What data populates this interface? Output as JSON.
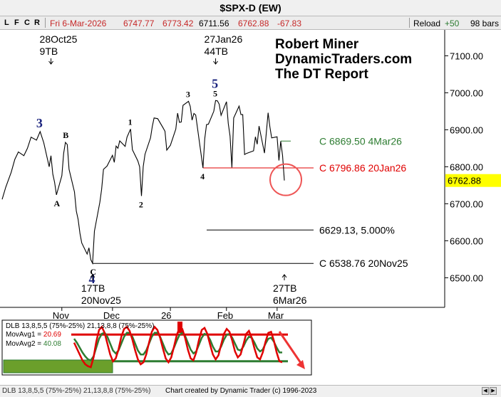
{
  "title": "$SPX-D (EW)",
  "toolbar": {
    "buttons": [
      {
        "label": "L",
        "color": "#2e7d32"
      },
      {
        "label": "F",
        "color": "#2e7d32"
      },
      {
        "label": "C",
        "color": "#2e7d32"
      },
      {
        "label": "R",
        "color": "#c62828"
      }
    ],
    "date": "Fri 6-Mar-2026",
    "open": "6747.77",
    "high": "6773.42",
    "close_label": "6711.56",
    "last": "6762.88",
    "change": "-67.83",
    "reload": "Reload",
    "plus": "+50",
    "bars": "98 bars"
  },
  "info_box": [
    "Robert Miner",
    "DynamicTraders.com",
    "The DT Report"
  ],
  "colors": {
    "up": "#2e7d32",
    "down": "#e00000",
    "wave": "#1a237e",
    "highlight": "#ffff00",
    "ellipse": "#ee5555",
    "green_fill": "#6b9f2b"
  },
  "chart_data": {
    "type": "line",
    "title": "$SPX-D (EW)",
    "ylim": [
      6420,
      7170
    ],
    "yticks": [
      "7100.00",
      "7000.00",
      "6900.00",
      "6800.00",
      "6700.00",
      "6600.00",
      "6500.00"
    ],
    "ytick_values": [
      7100,
      7000,
      6900,
      6800,
      6700,
      6600,
      6500
    ],
    "xticks": [
      "Nov",
      "Dec",
      "26",
      "Feb",
      "Mar"
    ],
    "xtick_dates": [
      "2025-11-03",
      "2025-12-01",
      "2026-01-02",
      "2026-02-02",
      "2026-03-02"
    ],
    "series": [
      {
        "values": [
          {
            "d": "2025-10-01",
            "v": 6712
          },
          {
            "d": "2025-10-03",
            "v": 6745
          },
          {
            "d": "2025-10-06",
            "v": 6785
          },
          {
            "d": "2025-10-08",
            "v": 6820
          },
          {
            "d": "2025-10-10",
            "v": 6840
          },
          {
            "d": "2025-10-13",
            "v": 6830
          },
          {
            "d": "2025-10-15",
            "v": 6850
          },
          {
            "d": "2025-10-17",
            "v": 6880
          },
          {
            "d": "2025-10-20",
            "v": 6872
          },
          {
            "d": "2025-10-22",
            "v": 6895
          },
          {
            "d": "2025-10-24",
            "v": 6865
          },
          {
            "d": "2025-10-27",
            "v": 6800
          },
          {
            "d": "2025-10-28",
            "v": 6830
          },
          {
            "d": "2025-10-29",
            "v": 6780
          },
          {
            "d": "2025-10-30",
            "v": 6758
          },
          {
            "d": "2025-10-31",
            "v": 6724
          },
          {
            "d": "2025-11-03",
            "v": 6776
          },
          {
            "d": "2025-11-04",
            "v": 6836
          },
          {
            "d": "2025-11-05",
            "v": 6866
          },
          {
            "d": "2025-11-06",
            "v": 6860
          },
          {
            "d": "2025-11-07",
            "v": 6793
          },
          {
            "d": "2025-11-10",
            "v": 6732
          },
          {
            "d": "2025-11-11",
            "v": 6680
          },
          {
            "d": "2025-11-12",
            "v": 6658
          },
          {
            "d": "2025-11-13",
            "v": 6620
          },
          {
            "d": "2025-11-14",
            "v": 6594
          },
          {
            "d": "2025-11-17",
            "v": 6564
          },
          {
            "d": "2025-11-18",
            "v": 6581
          },
          {
            "d": "2025-11-19",
            "v": 6549
          },
          {
            "d": "2025-11-20",
            "v": 6539
          },
          {
            "d": "2025-11-21",
            "v": 6626
          },
          {
            "d": "2025-11-24",
            "v": 6704
          },
          {
            "d": "2025-11-25",
            "v": 6739
          },
          {
            "d": "2025-11-26",
            "v": 6793
          },
          {
            "d": "2025-11-28",
            "v": 6802
          },
          {
            "d": "2025-12-01",
            "v": 6831
          },
          {
            "d": "2025-12-02",
            "v": 6812
          },
          {
            "d": "2025-12-03",
            "v": 6856
          },
          {
            "d": "2025-12-04",
            "v": 6850
          },
          {
            "d": "2025-12-05",
            "v": 6870
          },
          {
            "d": "2025-12-08",
            "v": 6855
          },
          {
            "d": "2025-12-09",
            "v": 6880
          },
          {
            "d": "2025-12-11",
            "v": 6902
          },
          {
            "d": "2025-12-12",
            "v": 6846
          },
          {
            "d": "2025-12-15",
            "v": 6816
          },
          {
            "d": "2025-12-16",
            "v": 6800
          },
          {
            "d": "2025-12-17",
            "v": 6721
          },
          {
            "d": "2025-12-18",
            "v": 6801
          },
          {
            "d": "2025-12-19",
            "v": 6834
          },
          {
            "d": "2025-12-22",
            "v": 6878
          },
          {
            "d": "2025-12-23",
            "v": 6909
          },
          {
            "d": "2025-12-24",
            "v": 6932
          },
          {
            "d": "2025-12-26",
            "v": 6930
          },
          {
            "d": "2025-12-29",
            "v": 6905
          },
          {
            "d": "2025-12-30",
            "v": 6896
          },
          {
            "d": "2025-12-31",
            "v": 6845
          },
          {
            "d": "2026-01-02",
            "v": 6858
          },
          {
            "d": "2026-01-05",
            "v": 6902
          },
          {
            "d": "2026-01-06",
            "v": 6945
          },
          {
            "d": "2026-01-07",
            "v": 6920
          },
          {
            "d": "2026-01-08",
            "v": 6921
          },
          {
            "d": "2026-01-09",
            "v": 6966
          },
          {
            "d": "2026-01-12",
            "v": 6977
          },
          {
            "d": "2026-01-13",
            "v": 6963
          },
          {
            "d": "2026-01-14",
            "v": 6926
          },
          {
            "d": "2026-01-15",
            "v": 6944
          },
          {
            "d": "2026-01-16",
            "v": 6940
          },
          {
            "d": "2026-01-20",
            "v": 6797
          },
          {
            "d": "2026-01-21",
            "v": 6876
          },
          {
            "d": "2026-01-22",
            "v": 6914
          },
          {
            "d": "2026-01-23",
            "v": 6915
          },
          {
            "d": "2026-01-26",
            "v": 6950
          },
          {
            "d": "2026-01-27",
            "v": 6979
          },
          {
            "d": "2026-01-28",
            "v": 6978
          },
          {
            "d": "2026-01-29",
            "v": 6969
          },
          {
            "d": "2026-01-30",
            "v": 6939
          },
          {
            "d": "2026-02-02",
            "v": 6976
          },
          {
            "d": "2026-02-03",
            "v": 6917
          },
          {
            "d": "2026-02-04",
            "v": 6883
          },
          {
            "d": "2026-02-05",
            "v": 6798
          },
          {
            "d": "2026-02-06",
            "v": 6932
          },
          {
            "d": "2026-02-09",
            "v": 6964
          },
          {
            "d": "2026-02-10",
            "v": 6941
          },
          {
            "d": "2026-02-11",
            "v": 6941
          },
          {
            "d": "2026-02-12",
            "v": 6833
          },
          {
            "d": "2026-02-13",
            "v": 6836
          },
          {
            "d": "2026-02-17",
            "v": 6843
          },
          {
            "d": "2026-02-18",
            "v": 6881
          },
          {
            "d": "2026-02-19",
            "v": 6861
          },
          {
            "d": "2026-02-20",
            "v": 6910
          },
          {
            "d": "2026-02-23",
            "v": 6837
          },
          {
            "d": "2026-02-24",
            "v": 6890
          },
          {
            "d": "2026-02-25",
            "v": 6946
          },
          {
            "d": "2026-02-26",
            "v": 6908
          },
          {
            "d": "2026-02-27",
            "v": 6878
          },
          {
            "d": "2026-03-02",
            "v": 6881
          },
          {
            "d": "2026-03-03",
            "v": 6817
          },
          {
            "d": "2026-03-04",
            "v": 6869
          },
          {
            "d": "2026-03-05",
            "v": 6830
          },
          {
            "d": "2026-03-06",
            "v": 6762.88
          }
        ]
      }
    ],
    "level_lines": [
      {
        "label": "C 6869.50 4Mar26",
        "value": 6869.5,
        "from": "2026-03-04",
        "color": "#2e7d32"
      },
      {
        "label": "C 6796.86 20Jan26",
        "value": 6796.86,
        "from": "2026-01-20",
        "color": "#e00000"
      },
      {
        "label": "6629.13,   5.000%",
        "value": 6629.13,
        "from": "2026-01-15",
        "color": "#000000"
      },
      {
        "label": "C 6538.76 20Nov25",
        "value": 6538.76,
        "from": "2025-11-20",
        "color": "#000000"
      }
    ],
    "current_price": "6762.88",
    "wave_labels": [
      {
        "text": "3",
        "d": "2025-10-22",
        "v": 6895,
        "pos": "above",
        "style": "major"
      },
      {
        "text": "A",
        "d": "2025-10-31",
        "v": 6724,
        "pos": "below",
        "style": "minor"
      },
      {
        "text": "B",
        "d": "2025-11-05",
        "v": 6866,
        "pos": "above",
        "style": "minor"
      },
      {
        "text": "C",
        "d": "2025-11-20",
        "v": 6539,
        "pos": "below",
        "style": "minor"
      },
      {
        "text": "4",
        "d": "2025-11-20",
        "v": 6539,
        "pos": "below2",
        "style": "major"
      },
      {
        "text": "1",
        "d": "2025-12-11",
        "v": 6902,
        "pos": "above",
        "style": "minor"
      },
      {
        "text": "2",
        "d": "2025-12-17",
        "v": 6721,
        "pos": "below",
        "style": "minor"
      },
      {
        "text": "3",
        "d": "2026-01-12",
        "v": 6977,
        "pos": "above",
        "style": "minor"
      },
      {
        "text": "4",
        "d": "2026-01-20",
        "v": 6797,
        "pos": "below",
        "style": "minor"
      },
      {
        "text": "5",
        "d": "2026-01-27",
        "v": 6979,
        "pos": "above",
        "style": "minor"
      },
      {
        "text": "5",
        "d": "2026-01-27",
        "v": 6979,
        "pos": "above2",
        "style": "major"
      }
    ],
    "time_annotations": [
      {
        "lines": [
          "28Oct25",
          "9TB"
        ],
        "arrow": "down",
        "d": "2025-10-28"
      },
      {
        "lines": [
          "27Jan26",
          "44TB"
        ],
        "arrow": "down",
        "d": "2026-01-27"
      },
      {
        "lines": [
          "17TB",
          "20Nov25"
        ],
        "arrow": "up",
        "d": "2025-11-20"
      },
      {
        "lines": [
          "27TB",
          "6Mar26"
        ],
        "arrow": "up",
        "d": "2026-03-06"
      }
    ],
    "indicator": {
      "title": "DLB 13,8,5,5 (75%-25%) 21,13,8,8 (75%-25%)",
      "movavg1_label": "MovAvg1 =",
      "movavg1_value": "20.69",
      "movavg2_label": "MovAvg2 =",
      "movavg2_value": "40.08",
      "bands": [
        75,
        25
      ],
      "ylim": [
        0,
        100
      ],
      "movavg1": [
        60,
        48,
        36,
        24,
        16,
        12,
        10,
        30,
        62,
        86,
        92,
        80,
        58,
        36,
        22,
        28,
        46,
        72,
        88,
        92,
        84,
        66,
        44,
        26,
        16,
        20,
        36,
        60,
        82,
        92,
        86,
        70,
        48,
        28,
        20,
        30,
        52,
        76,
        90,
        88,
        70,
        46,
        28,
        24,
        40,
        66,
        86,
        90,
        78,
        56,
        36,
        26,
        34,
        56,
        78,
        88,
        82,
        64,
        42,
        30,
        36,
        56,
        78,
        84,
        70,
        48,
        30,
        26,
        40,
        62,
        80,
        82,
        64,
        40,
        22,
        20
      ],
      "movavg2": [
        68,
        60,
        50,
        40,
        32,
        26,
        24,
        32,
        50,
        68,
        78,
        80,
        72,
        58,
        44,
        38,
        44,
        58,
        72,
        80,
        80,
        72,
        58,
        44,
        36,
        36,
        44,
        58,
        72,
        80,
        80,
        72,
        58,
        44,
        36,
        38,
        50,
        64,
        76,
        80,
        74,
        60,
        46,
        38,
        42,
        56,
        70,
        78,
        76,
        66,
        52,
        42,
        42,
        52,
        66,
        76,
        78,
        70,
        58,
        46,
        44,
        52,
        64,
        72,
        70,
        60,
        48,
        42,
        46,
        58,
        68,
        70,
        62,
        50,
        40,
        40
      ]
    },
    "bottom_label": "DLB 13,8,5,5 (75%-25%) 21,13,8,8 (75%-25%)"
  },
  "footer": {
    "indicator_label": "DLB 13,8,5,5 (75%-25%) 21,13,8,8 (75%-25%)",
    "credit": "Chart created by Dynamic Trader  (c) 1996-2023"
  }
}
